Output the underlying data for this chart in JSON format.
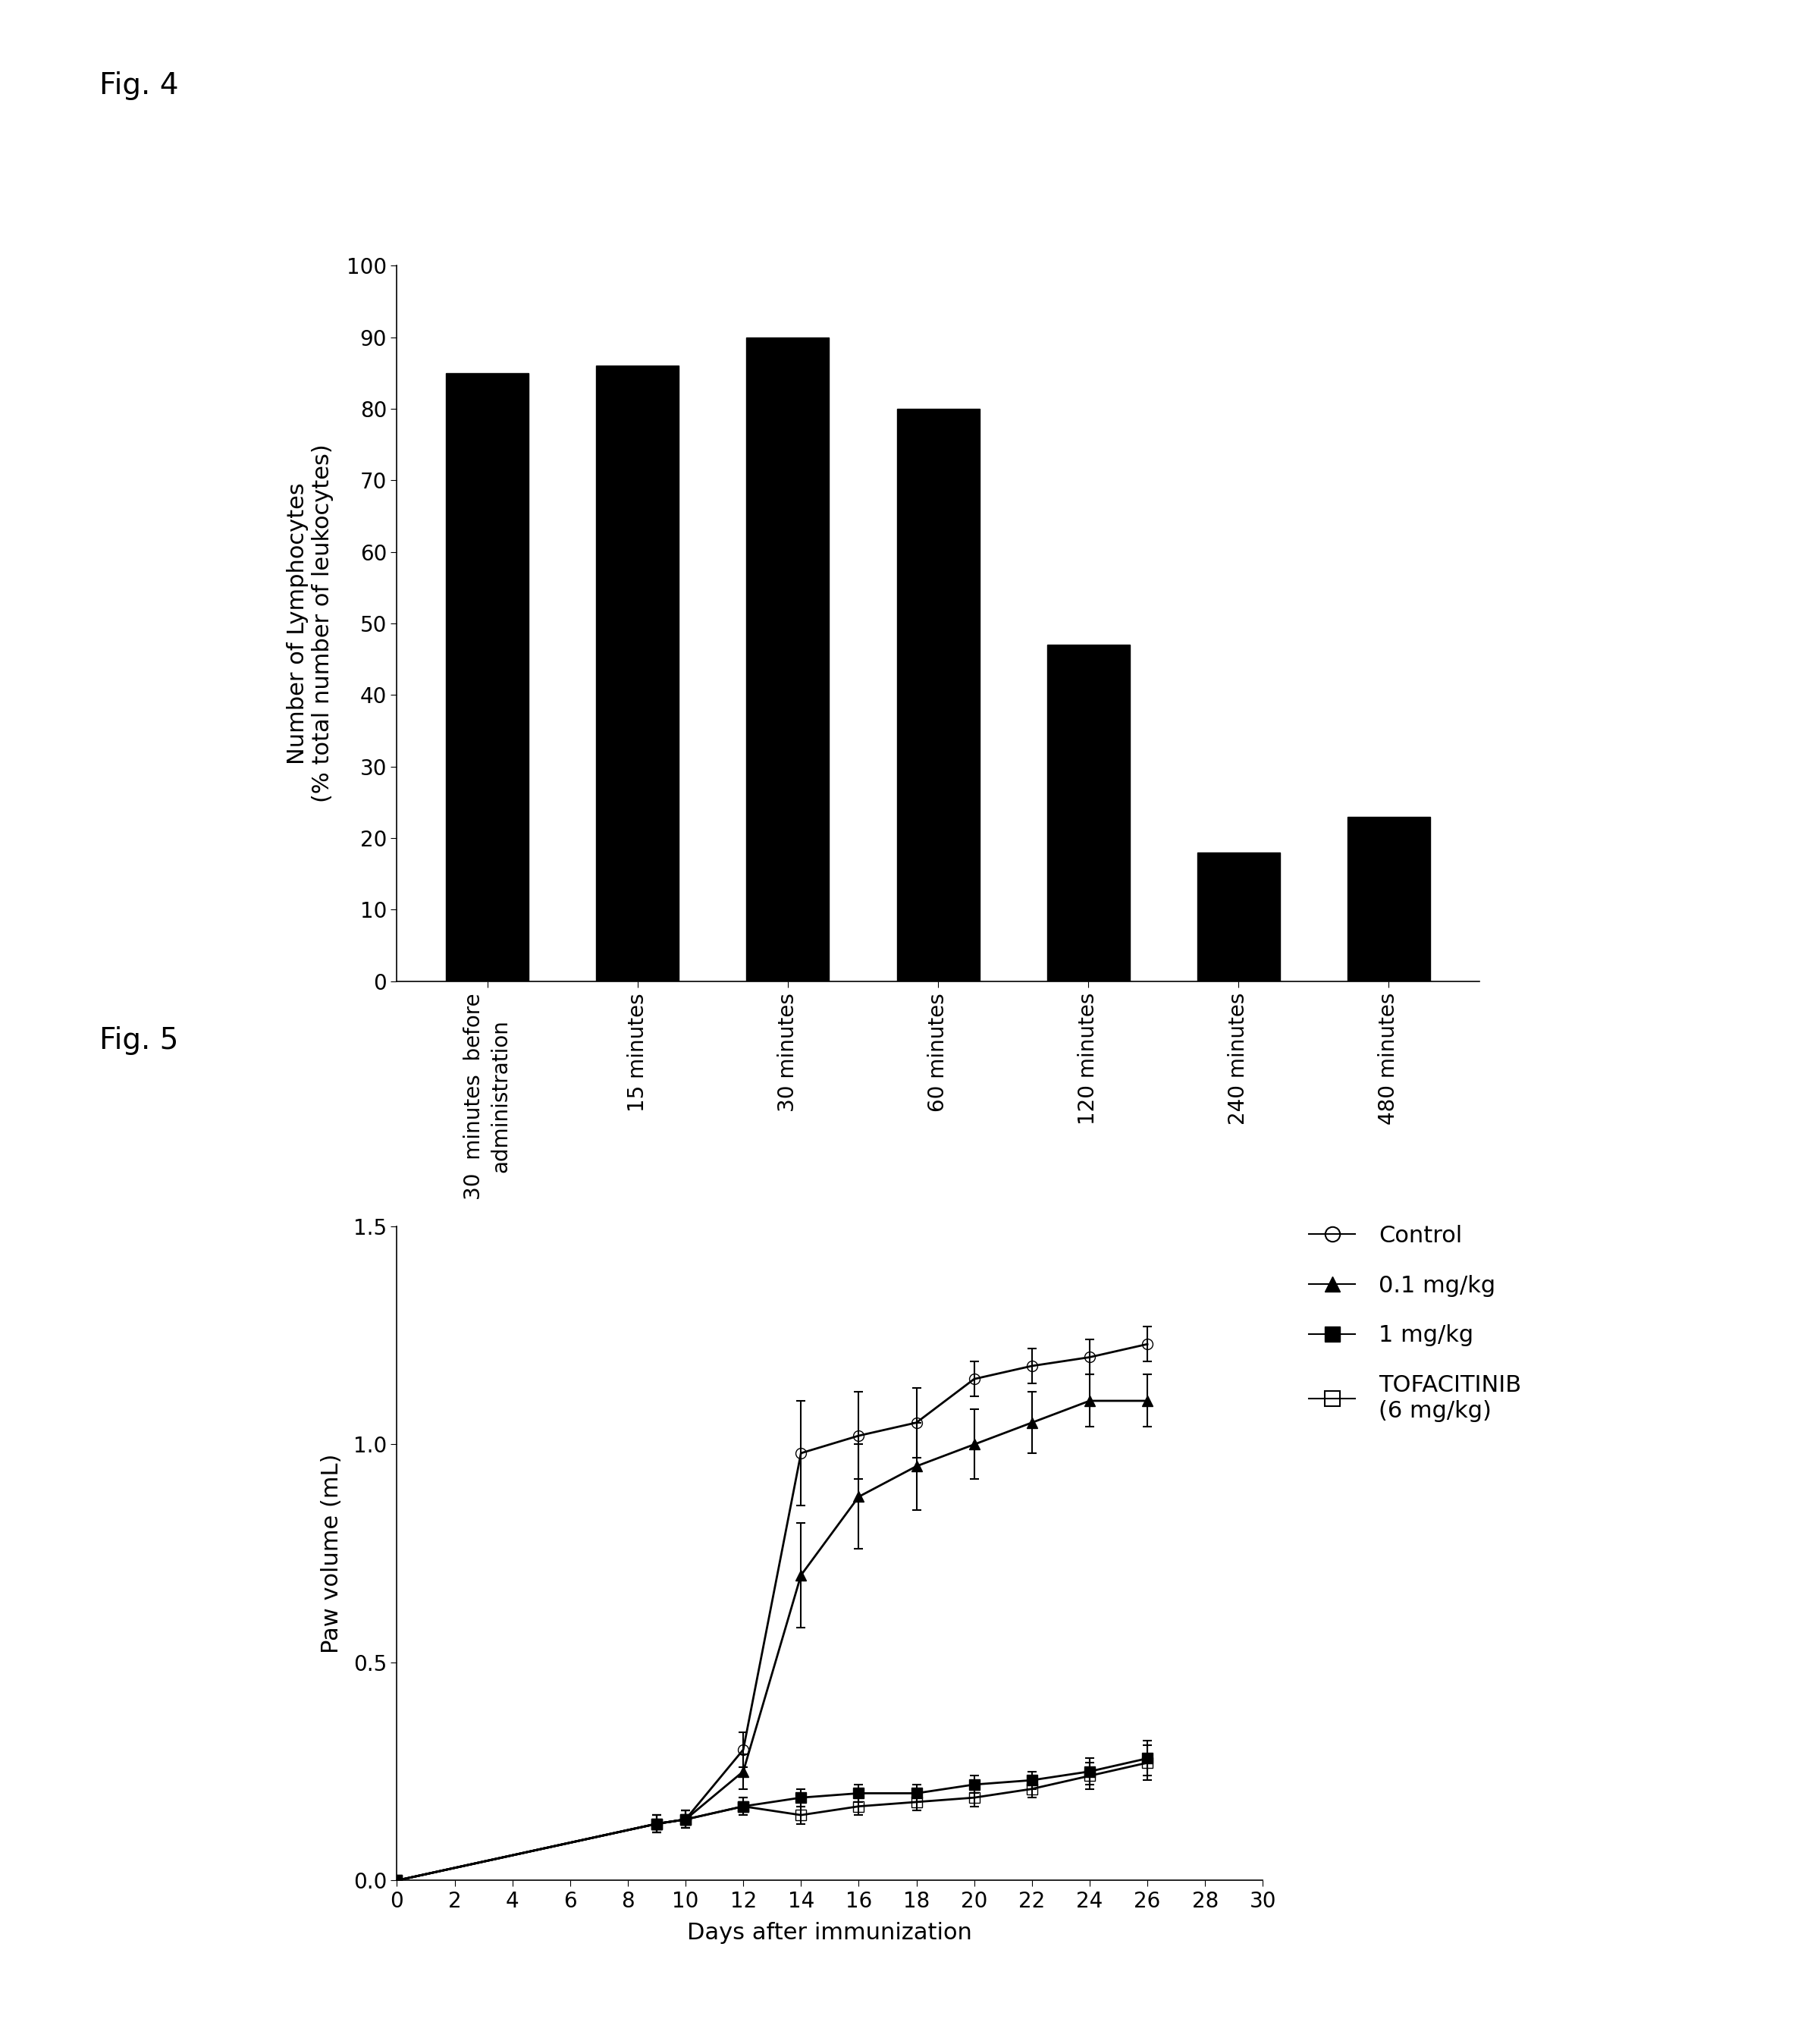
{
  "fig4": {
    "title": "Fig. 4",
    "bar_values": [
      85,
      86,
      90,
      80,
      47,
      18,
      23
    ],
    "bar_color": "#000000",
    "categories": [
      "30  minutes  before\nadministration",
      "15 minutes",
      "30 minutes",
      "60 minutes",
      "120 minutes",
      "240 minutes",
      "480 minutes"
    ],
    "ylabel_line1": "Number of Lymphocytes",
    "ylabel_line2": "(% total number of leukocytes)",
    "ylim": [
      0,
      100
    ],
    "yticks": [
      0,
      10,
      20,
      30,
      40,
      50,
      60,
      70,
      80,
      90,
      100
    ]
  },
  "fig5": {
    "title": "Fig. 5",
    "xlabel": "Days after immunization",
    "ylabel": "Paw volume (mL)",
    "ylim": [
      0,
      1.5
    ],
    "yticks": [
      0.0,
      0.5,
      1.0,
      1.5
    ],
    "xlim": [
      0,
      30
    ],
    "xticks": [
      0,
      2,
      4,
      6,
      8,
      10,
      12,
      14,
      16,
      18,
      20,
      22,
      24,
      26,
      28,
      30
    ],
    "series": {
      "Control": {
        "x": [
          0,
          9,
          10,
          12,
          14,
          16,
          18,
          20,
          22,
          24,
          26
        ],
        "y": [
          0.0,
          0.13,
          0.14,
          0.3,
          0.98,
          1.02,
          1.05,
          1.15,
          1.18,
          1.2,
          1.23
        ],
        "yerr": [
          0.0,
          0.02,
          0.02,
          0.04,
          0.12,
          0.1,
          0.08,
          0.04,
          0.04,
          0.04,
          0.04
        ],
        "marker": "o",
        "fillstyle": "none",
        "color": "#000000",
        "label": "Control"
      },
      "0.1 mg/kg": {
        "x": [
          0,
          9,
          10,
          12,
          14,
          16,
          18,
          20,
          22,
          24,
          26
        ],
        "y": [
          0.0,
          0.13,
          0.14,
          0.25,
          0.7,
          0.88,
          0.95,
          1.0,
          1.05,
          1.1,
          1.1
        ],
        "yerr": [
          0.0,
          0.02,
          0.02,
          0.04,
          0.12,
          0.12,
          0.1,
          0.08,
          0.07,
          0.06,
          0.06
        ],
        "marker": "^",
        "fillstyle": "full",
        "color": "#000000",
        "label": "0.1 mg/kg"
      },
      "1 mg/kg": {
        "x": [
          0,
          9,
          10,
          12,
          14,
          16,
          18,
          20,
          22,
          24,
          26
        ],
        "y": [
          0.0,
          0.13,
          0.14,
          0.17,
          0.19,
          0.2,
          0.2,
          0.22,
          0.23,
          0.25,
          0.28
        ],
        "yerr": [
          0.0,
          0.02,
          0.02,
          0.02,
          0.02,
          0.02,
          0.02,
          0.02,
          0.02,
          0.03,
          0.04
        ],
        "marker": "s",
        "fillstyle": "full",
        "color": "#000000",
        "label": "1 mg/kg"
      },
      "TOFACITINIB": {
        "x": [
          0,
          9,
          10,
          12,
          14,
          16,
          18,
          20,
          22,
          24,
          26
        ],
        "y": [
          0.0,
          0.13,
          0.14,
          0.17,
          0.15,
          0.17,
          0.18,
          0.19,
          0.21,
          0.24,
          0.27
        ],
        "yerr": [
          0.0,
          0.02,
          0.02,
          0.02,
          0.02,
          0.02,
          0.02,
          0.02,
          0.02,
          0.03,
          0.04
        ],
        "marker": "s",
        "fillstyle": "none",
        "color": "#000000",
        "label": "TOFACITINIB\n(6 mg/kg)"
      }
    },
    "legend_labels": [
      "Control",
      "0.1 mg/kg",
      "1 mg/kg",
      "TOFACITINIB\n(6 mg/kg)"
    ]
  },
  "background_color": "#ffffff",
  "fig_label_fontsize": 28,
  "bar_ylabel_fontsize": 22,
  "bar_tick_fontsize": 20,
  "line_axis_fontsize": 22,
  "line_tick_fontsize": 20,
  "legend_fontsize": 22
}
